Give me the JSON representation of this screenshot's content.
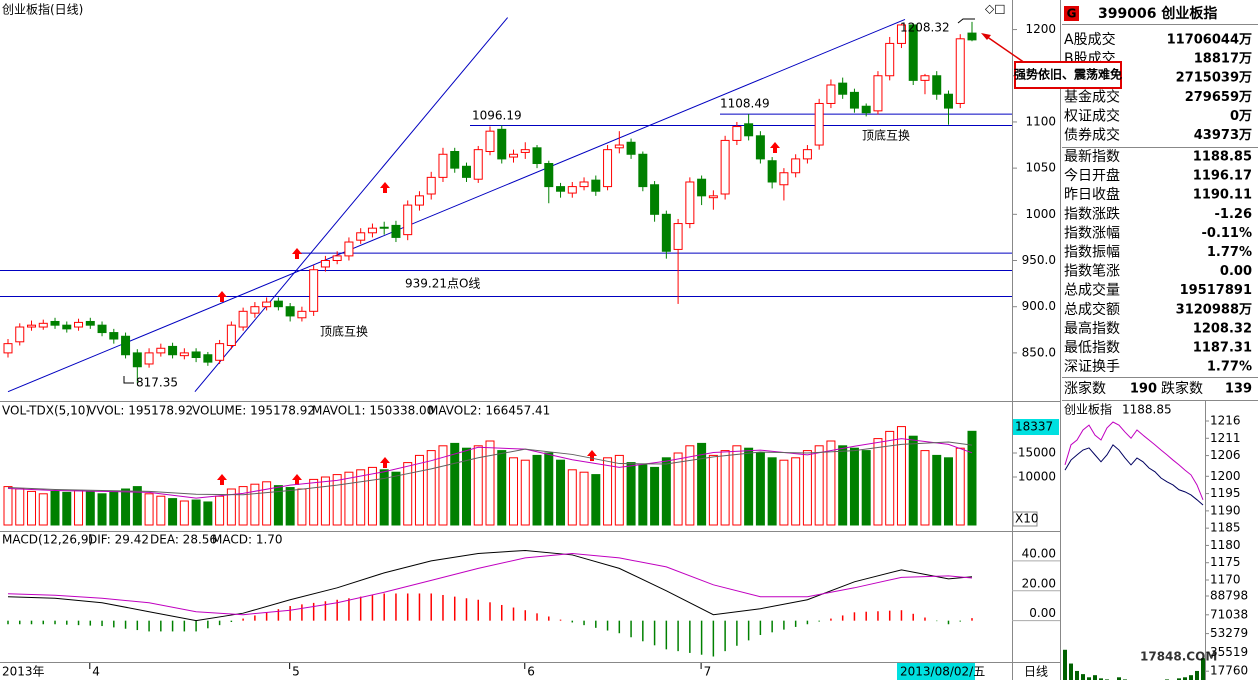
{
  "title": "创业板指(日线)",
  "chart_data": [
    {
      "type": "candlestick",
      "open": [
        850,
        862,
        878,
        878,
        884,
        880,
        878,
        884,
        880,
        872,
        868,
        850,
        838,
        850,
        857,
        847,
        851,
        848,
        842,
        858,
        878,
        893,
        900,
        906,
        900,
        888,
        895,
        943,
        950,
        955,
        972,
        980,
        986,
        988,
        978,
        1010,
        1022,
        1040,
        1068,
        1052,
        1038,
        1068,
        1092,
        1062,
        1067,
        1072,
        1055,
        1030,
        1023,
        1030,
        1037,
        1030,
        1072,
        1078,
        1065,
        1032,
        1000,
        962,
        990,
        1038,
        1018,
        1022,
        1080,
        1098,
        1085,
        1058,
        1032,
        1045,
        1060,
        1075,
        1120,
        1142,
        1132,
        1117,
        1112,
        1150,
        1185,
        1205,
        1145,
        1150,
        1130,
        1120,
        1196.17
      ],
      "high": [
        865,
        882,
        885,
        886,
        888,
        884,
        887,
        888,
        884,
        876,
        872,
        854,
        855,
        860,
        861,
        855,
        855,
        851,
        864,
        884,
        899,
        905,
        910,
        910,
        904,
        900,
        945,
        955,
        960,
        975,
        985,
        990,
        992,
        993,
        1015,
        1025,
        1046,
        1072,
        1072,
        1056,
        1074,
        1095,
        1096.19,
        1070,
        1078,
        1075,
        1058,
        1034,
        1035,
        1040,
        1042,
        1075,
        1090,
        1082,
        1068,
        1036,
        1004,
        995,
        1040,
        1042,
        1026,
        1085,
        1100,
        1108.49,
        1090,
        1062,
        1050,
        1065,
        1075,
        1125,
        1146,
        1148,
        1136,
        1120,
        1155,
        1192,
        1206,
        1207,
        1152,
        1155,
        1134,
        1195,
        1208.32
      ],
      "low": [
        845,
        858,
        874,
        875,
        876,
        872,
        874,
        876,
        868,
        860,
        844,
        817.35,
        834,
        846,
        844,
        843,
        840,
        836,
        838,
        854,
        874,
        888,
        896,
        896,
        884,
        884,
        890,
        938,
        946,
        950,
        968,
        975,
        978,
        970,
        972,
        1004,
        1016,
        1035,
        1045,
        1035,
        1034,
        1064,
        1055,
        1056,
        1060,
        1050,
        1012,
        1018,
        1018,
        1026,
        1020,
        1026,
        1066,
        1060,
        1025,
        992,
        952,
        903,
        985,
        1010,
        1005,
        1016,
        1075,
        1080,
        1055,
        1028,
        1015,
        1040,
        1055,
        1070,
        1115,
        1125,
        1110,
        1106,
        1108,
        1145,
        1180,
        1140,
        1130,
        1124,
        1097,
        1115,
        1187.31
      ],
      "close": [
        860,
        878,
        880,
        882,
        880,
        876,
        883,
        880,
        872,
        865,
        848,
        835,
        850,
        855,
        848,
        850,
        845,
        840,
        860,
        880,
        895,
        900,
        905,
        900,
        890,
        895,
        940,
        950,
        955,
        970,
        980,
        985,
        985,
        975,
        1010,
        1020,
        1040,
        1065,
        1050,
        1040,
        1070,
        1090,
        1060,
        1065,
        1070,
        1055,
        1030,
        1025,
        1030,
        1035,
        1025,
        1070,
        1075,
        1065,
        1030,
        1000,
        960,
        990,
        1035,
        1020,
        1020,
        1080,
        1095,
        1085,
        1060,
        1035,
        1045,
        1060,
        1070,
        1120,
        1140,
        1130,
        1115,
        1110,
        1150,
        1185,
        1205,
        1145,
        1150,
        1130,
        1115,
        1190,
        1188.85
      ],
      "up_color": "#ff0000",
      "down_color": "#008000",
      "ylim": [
        799,
        1232
      ],
      "yticks": [
        1200,
        1150,
        1100,
        1050,
        1000,
        {
          "value": 950,
          "label": "950.0"
        },
        {
          "value": 900,
          "label": "900.0"
        },
        {
          "value": 850,
          "label": "850.0"
        }
      ],
      "xticks": [
        {
          "value": 0,
          "label": "2013年"
        },
        {
          "value": 7,
          "label": "4"
        },
        {
          "value": 24,
          "label": "5"
        },
        {
          "value": 44,
          "label": "6"
        },
        {
          "value": 59,
          "label": "7"
        }
      ],
      "date_label": "2013/08/02/五",
      "period_label": "日线",
      "hlines": [
        {
          "value": 1108.49,
          "label": "1108.49"
        },
        {
          "value": 1096.19,
          "label": "1096.19"
        },
        {
          "value": 958
        },
        {
          "value": 939.21,
          "label": "939.21点O线"
        },
        {
          "value": 911
        }
      ],
      "trendlines": [
        {
          "x": [
            0,
            76.3
          ],
          "values": [
            808,
            1211
          ]
        },
        {
          "x": [
            15.9,
            42.5
          ],
          "values": [
            808,
            1213
          ]
        }
      ],
      "annotations": [
        "817.35",
        "1208.32",
        "顶底互换",
        "顶底互换"
      ],
      "callout": "强势依旧、震荡难免"
    },
    {
      "type": "bar",
      "header": [
        {
          "text": "VOL-TDX(5,10)",
          "color": "#000000"
        },
        {
          "text": "VVOL: 195178.92",
          "color": "#000000"
        },
        {
          "text": "VOLUME: 195178.92",
          "color": "#c000c0"
        },
        {
          "text": "MAVOL1: 150338.00",
          "color": "#c000c0"
        },
        {
          "text": "MAVOL2: 166457.41",
          "color": "#808080"
        }
      ],
      "values": [
        8000,
        7500,
        7000,
        6500,
        7000,
        6800,
        7200,
        6900,
        6500,
        7000,
        7500,
        8000,
        6500,
        6000,
        5500,
        5000,
        5200,
        4800,
        6000,
        7500,
        8000,
        8500,
        9000,
        8200,
        7800,
        7500,
        9500,
        10000,
        10500,
        11000,
        11500,
        12000,
        11500,
        11000,
        13000,
        14500,
        15500,
        16500,
        17000,
        16000,
        16500,
        17500,
        15500,
        14000,
        13500,
        14500,
        15000,
        13500,
        11500,
        11000,
        10500,
        14000,
        14500,
        13000,
        12500,
        12000,
        14000,
        15000,
        16500,
        17000,
        14500,
        15500,
        16500,
        16000,
        15000,
        14000,
        13500,
        14000,
        15500,
        16500,
        17500,
        16500,
        16000,
        15500,
        18000,
        19500,
        20500,
        18500,
        15500,
        14500,
        14000,
        16000,
        19517.892
      ],
      "ylim": [
        0,
        25000
      ],
      "yticks": [
        15000,
        10000
      ],
      "cursor_label": "18337",
      "scale_label": "X10",
      "series": [
        {
          "color": "#c000c0",
          "x": [
            0,
            4,
            8,
            12,
            16,
            20,
            24,
            28,
            32,
            36,
            40,
            44,
            48,
            52,
            56,
            60,
            64,
            68,
            72,
            76,
            80,
            82
          ],
          "values": [
            7600,
            7200,
            7000,
            6800,
            5600,
            6600,
            8300,
            9300,
            11100,
            13400,
            16200,
            15800,
            13600,
            12000,
            13300,
            15100,
            15600,
            14600,
            16400,
            18000,
            16800,
            15033.8
          ]
        },
        {
          "color": "#606060",
          "x": [
            0,
            4,
            8,
            12,
            16,
            20,
            24,
            28,
            32,
            36,
            40,
            44,
            48,
            52,
            56,
            60,
            64,
            68,
            72,
            76,
            80,
            82
          ],
          "values": [
            7800,
            7400,
            7200,
            7000,
            6400,
            6300,
            7200,
            8300,
            9700,
            11700,
            14000,
            15800,
            14700,
            12800,
            12700,
            14200,
            15200,
            15000,
            15500,
            16800,
            17300,
            16645.741
          ]
        }
      ]
    },
    {
      "type": "macd",
      "header": [
        {
          "text": "MACD(12,26,9)",
          "color": "#000000"
        },
        {
          "text": "DIF: 29.42",
          "color": "#000000"
        },
        {
          "text": "DEA: 28.56",
          "color": "#c000c0"
        },
        {
          "text": "MACD: 1.70",
          "color": "#808080"
        }
      ],
      "values": [
        -2.4,
        -2.4,
        -2.4,
        -2.4,
        -2.4,
        -2.7,
        -3,
        -3.3,
        -3.6,
        -4.5,
        -5.4,
        -6.3,
        -7.2,
        -7.2,
        -7.2,
        -7.2,
        -7.2,
        -5.1,
        -3,
        -0.9,
        1.4,
        3.5,
        5.6,
        7.7,
        9.8,
        10.9,
        11.9,
        13,
        14,
        15,
        16.1,
        17.2,
        18.2,
        18.2,
        18.2,
        18.2,
        18.2,
        17.2,
        16.1,
        15,
        14,
        12.3,
        10.5,
        8.8,
        7,
        4.9,
        2.8,
        0.7,
        -1.2,
        -3,
        -4.8,
        -6.6,
        -8.4,
        -11.1,
        -13.8,
        -16.5,
        -19.2,
        -20.4,
        -21.6,
        -22.8,
        -24,
        -20.4,
        -16.8,
        -13.2,
        -9.6,
        -7.8,
        -6,
        -4.2,
        -2.4,
        -0.6,
        1.4,
        3.5,
        5.6,
        6,
        6.3,
        6.7,
        7,
        4.6,
        2.1,
        -0.3,
        -2.4,
        -0.6,
        1.7
      ],
      "ylim": [
        -27,
        54
      ],
      "yticks": [
        {
          "value": 40,
          "label": "40.00"
        },
        {
          "value": 20,
          "label": "20.00"
        },
        {
          "value": 0,
          "label": "0.00"
        }
      ],
      "series": [
        {
          "color": "#000000",
          "x": [
            0,
            4,
            8,
            12,
            16,
            20,
            24,
            28,
            32,
            36,
            40,
            44,
            48,
            52,
            56,
            60,
            64,
            68,
            72,
            76,
            80,
            82
          ],
          "values": [
            16,
            15,
            12,
            6,
            0,
            5,
            14,
            22,
            32,
            40,
            45,
            47,
            44,
            35,
            20,
            4,
            8,
            14,
            26,
            34,
            28,
            29.42
          ]
        },
        {
          "color": "#c000c0",
          "x": [
            0,
            4,
            8,
            12,
            16,
            20,
            24,
            28,
            32,
            36,
            40,
            44,
            48,
            52,
            56,
            60,
            64,
            68,
            72,
            76,
            80,
            82
          ],
          "values": [
            18,
            17,
            15,
            12,
            6,
            4,
            7,
            12,
            19,
            27,
            35,
            42,
            45,
            42,
            36,
            24,
            16,
            16,
            22,
            29,
            30,
            28.56
          ]
        }
      ]
    },
    {
      "type": "line",
      "title": "创业板指",
      "value_text": "1188.85",
      "x": [
        0,
        1,
        2,
        3,
        4,
        5,
        6,
        7,
        8,
        9,
        10,
        11,
        12,
        13,
        14,
        15,
        16,
        17,
        18,
        19,
        20,
        21,
        22,
        23
      ],
      "series": [
        {
          "color": "#c000c0",
          "values": [
            1203.3,
            1209.1,
            1210.5,
            1213.4,
            1214.8,
            1211.9,
            1210.5,
            1214,
            1215.7,
            1214.8,
            1212.8,
            1211,
            1213.4,
            1211.9,
            1210.5,
            1209.1,
            1207.6,
            1206.2,
            1204.7,
            1203.3,
            1201.8,
            1200.4,
            1197.5,
            1193.2
          ]
        },
        {
          "color": "#000060",
          "values": [
            1201.8,
            1204.7,
            1206.2,
            1207.6,
            1208.2,
            1206.2,
            1204.2,
            1206.2,
            1209.1,
            1207.6,
            1205.3,
            1203.3,
            1205.3,
            1204.2,
            1202.4,
            1201.3,
            1199.5,
            1198.4,
            1197.5,
            1196.1,
            1195.5,
            1194.6,
            1193.2,
            1191.7
          ]
        }
      ],
      "ylim": [
        1170,
        1216
      ],
      "yticks": [
        1216,
        1211,
        1206,
        1200,
        1195,
        1190,
        1185,
        1180,
        1175,
        1170
      ],
      "tick_colors": [
        "#e00000",
        "#e00000",
        "#e00000",
        "#e00000",
        "#e00000",
        "#000000",
        "#008000",
        "#008000",
        "#008000",
        "#008000"
      ],
      "volume": {
        "color": "#006000",
        "values": [
          38000,
          25000,
          18000,
          15000,
          12000,
          14000,
          11000,
          10000,
          9000,
          12000,
          10000,
          8000,
          9000,
          8000,
          7000,
          9000,
          8000,
          10000,
          9000,
          11000,
          12000,
          14000,
          18000,
          30000
        ],
        "ylim": [
          0,
          88798
        ],
        "yticks": [
          88798,
          71038,
          53279,
          35519,
          17760
        ],
        "tick_color": "#e00000"
      },
      "watermark": "17848.COM"
    }
  ],
  "quote": {
    "badge": "G",
    "code": "399006 创业板指",
    "rows": [
      {
        "label": "A股成交",
        "value": "11706044万",
        "color": "#e04000"
      },
      {
        "label": "B股成交",
        "value": "18817万",
        "color": "#e04000"
      },
      {
        "value": "2715039万",
        "color": "#e04000"
      },
      {
        "label": "基金成交",
        "value": "279659万",
        "color": "#e04000"
      },
      {
        "label": "权证成交",
        "value": "0万",
        "color": "#e04000"
      },
      {
        "label": "债券成交",
        "value": "43973万",
        "color": "#e04000"
      }
    ],
    "rows2": [
      {
        "label": "最新指数",
        "value": "1188.85",
        "color": "#008000"
      },
      {
        "label": "今日开盘",
        "value": "1196.17",
        "color": "#e00000"
      },
      {
        "label": "昨日收盘",
        "value": "1190.11",
        "color": "#000000"
      },
      {
        "label": "指数涨跌",
        "value": "-1.26",
        "color": "#008000"
      },
      {
        "label": "指数涨幅",
        "value": "-0.11%",
        "color": "#008000"
      },
      {
        "label": "指数振幅",
        "value": "1.77%",
        "color": "#000000"
      },
      {
        "label": "指数笔涨",
        "value": "0.00",
        "color": "#000000"
      },
      {
        "label": "总成交量",
        "value": "19517891",
        "color": "#e00000"
      },
      {
        "label": "总成交额",
        "value": "3120988万",
        "color": "#e00000"
      },
      {
        "label": "最高指数",
        "value": "1208.32",
        "color": "#e00000"
      },
      {
        "label": "最低指数",
        "value": "1187.31",
        "color": "#008000"
      },
      {
        "label": "深证换手",
        "value": "1.77%",
        "color": "#000000"
      }
    ],
    "breadth": {
      "up_label": "涨家数",
      "up": "190",
      "down_label": "跌家数",
      "down": "139"
    }
  }
}
